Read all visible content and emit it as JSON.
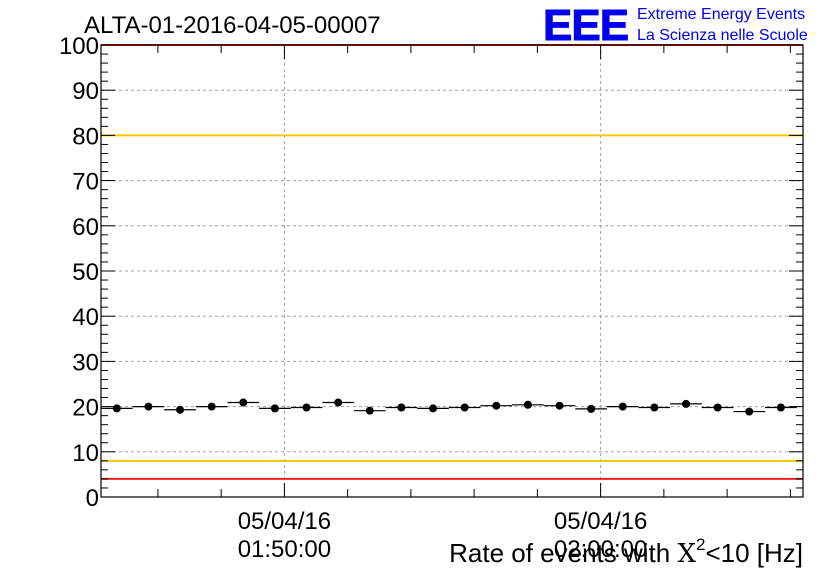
{
  "header": {
    "run_title": "ALTA-01-2016-04-05-00007",
    "logo_letters": "EEE",
    "logo_line1": "Extreme Energy Events",
    "logo_line2": "La Scienza nelle Scuole",
    "logo_color": "#0000ee"
  },
  "chart_data": {
    "type": "scatter",
    "title": "ALTA-01-2016-04-05-00007",
    "xlabel_prefix": "Rate of events with ",
    "xlabel_symbol": "X",
    "xlabel_exp": "2",
    "xlabel_suffix": "<10 [Hz]",
    "ylabel": "",
    "ylim": [
      0,
      100
    ],
    "y_ticks": [
      0,
      10,
      20,
      30,
      40,
      50,
      60,
      70,
      80,
      90,
      100
    ],
    "x_tick_labels": [
      {
        "date": "05/04/16",
        "time": "01:50:00",
        "at_minutes": 110
      },
      {
        "date": "05/04/16",
        "time": "02:00:00",
        "at_minutes": 120
      }
    ],
    "xlim_minutes": [
      104.2,
      126.4
    ],
    "points": [
      {
        "t": 104.7,
        "y": 19.6
      },
      {
        "t": 105.7,
        "y": 20.0
      },
      {
        "t": 106.7,
        "y": 19.3
      },
      {
        "t": 107.7,
        "y": 20.0
      },
      {
        "t": 108.7,
        "y": 20.9
      },
      {
        "t": 109.7,
        "y": 19.6
      },
      {
        "t": 110.7,
        "y": 19.8
      },
      {
        "t": 111.7,
        "y": 20.9
      },
      {
        "t": 112.7,
        "y": 19.1
      },
      {
        "t": 113.7,
        "y": 19.8
      },
      {
        "t": 114.7,
        "y": 19.6
      },
      {
        "t": 115.7,
        "y": 19.8
      },
      {
        "t": 116.7,
        "y": 20.2
      },
      {
        "t": 117.7,
        "y": 20.4
      },
      {
        "t": 118.7,
        "y": 20.2
      },
      {
        "t": 119.7,
        "y": 19.5
      },
      {
        "t": 120.7,
        "y": 20.0
      },
      {
        "t": 121.7,
        "y": 19.8
      },
      {
        "t": 122.7,
        "y": 20.6
      },
      {
        "t": 123.7,
        "y": 19.8
      },
      {
        "t": 124.7,
        "y": 18.9
      },
      {
        "t": 125.7,
        "y": 19.8
      }
    ],
    "reference_lines": [
      {
        "y": 100,
        "color": "#ee2222"
      },
      {
        "y": 80,
        "color": "#f2c500"
      },
      {
        "y": 8,
        "color": "#f2c500"
      },
      {
        "y": 4,
        "color": "#ee2222"
      }
    ],
    "grid": true,
    "marker_color": "#000000"
  }
}
